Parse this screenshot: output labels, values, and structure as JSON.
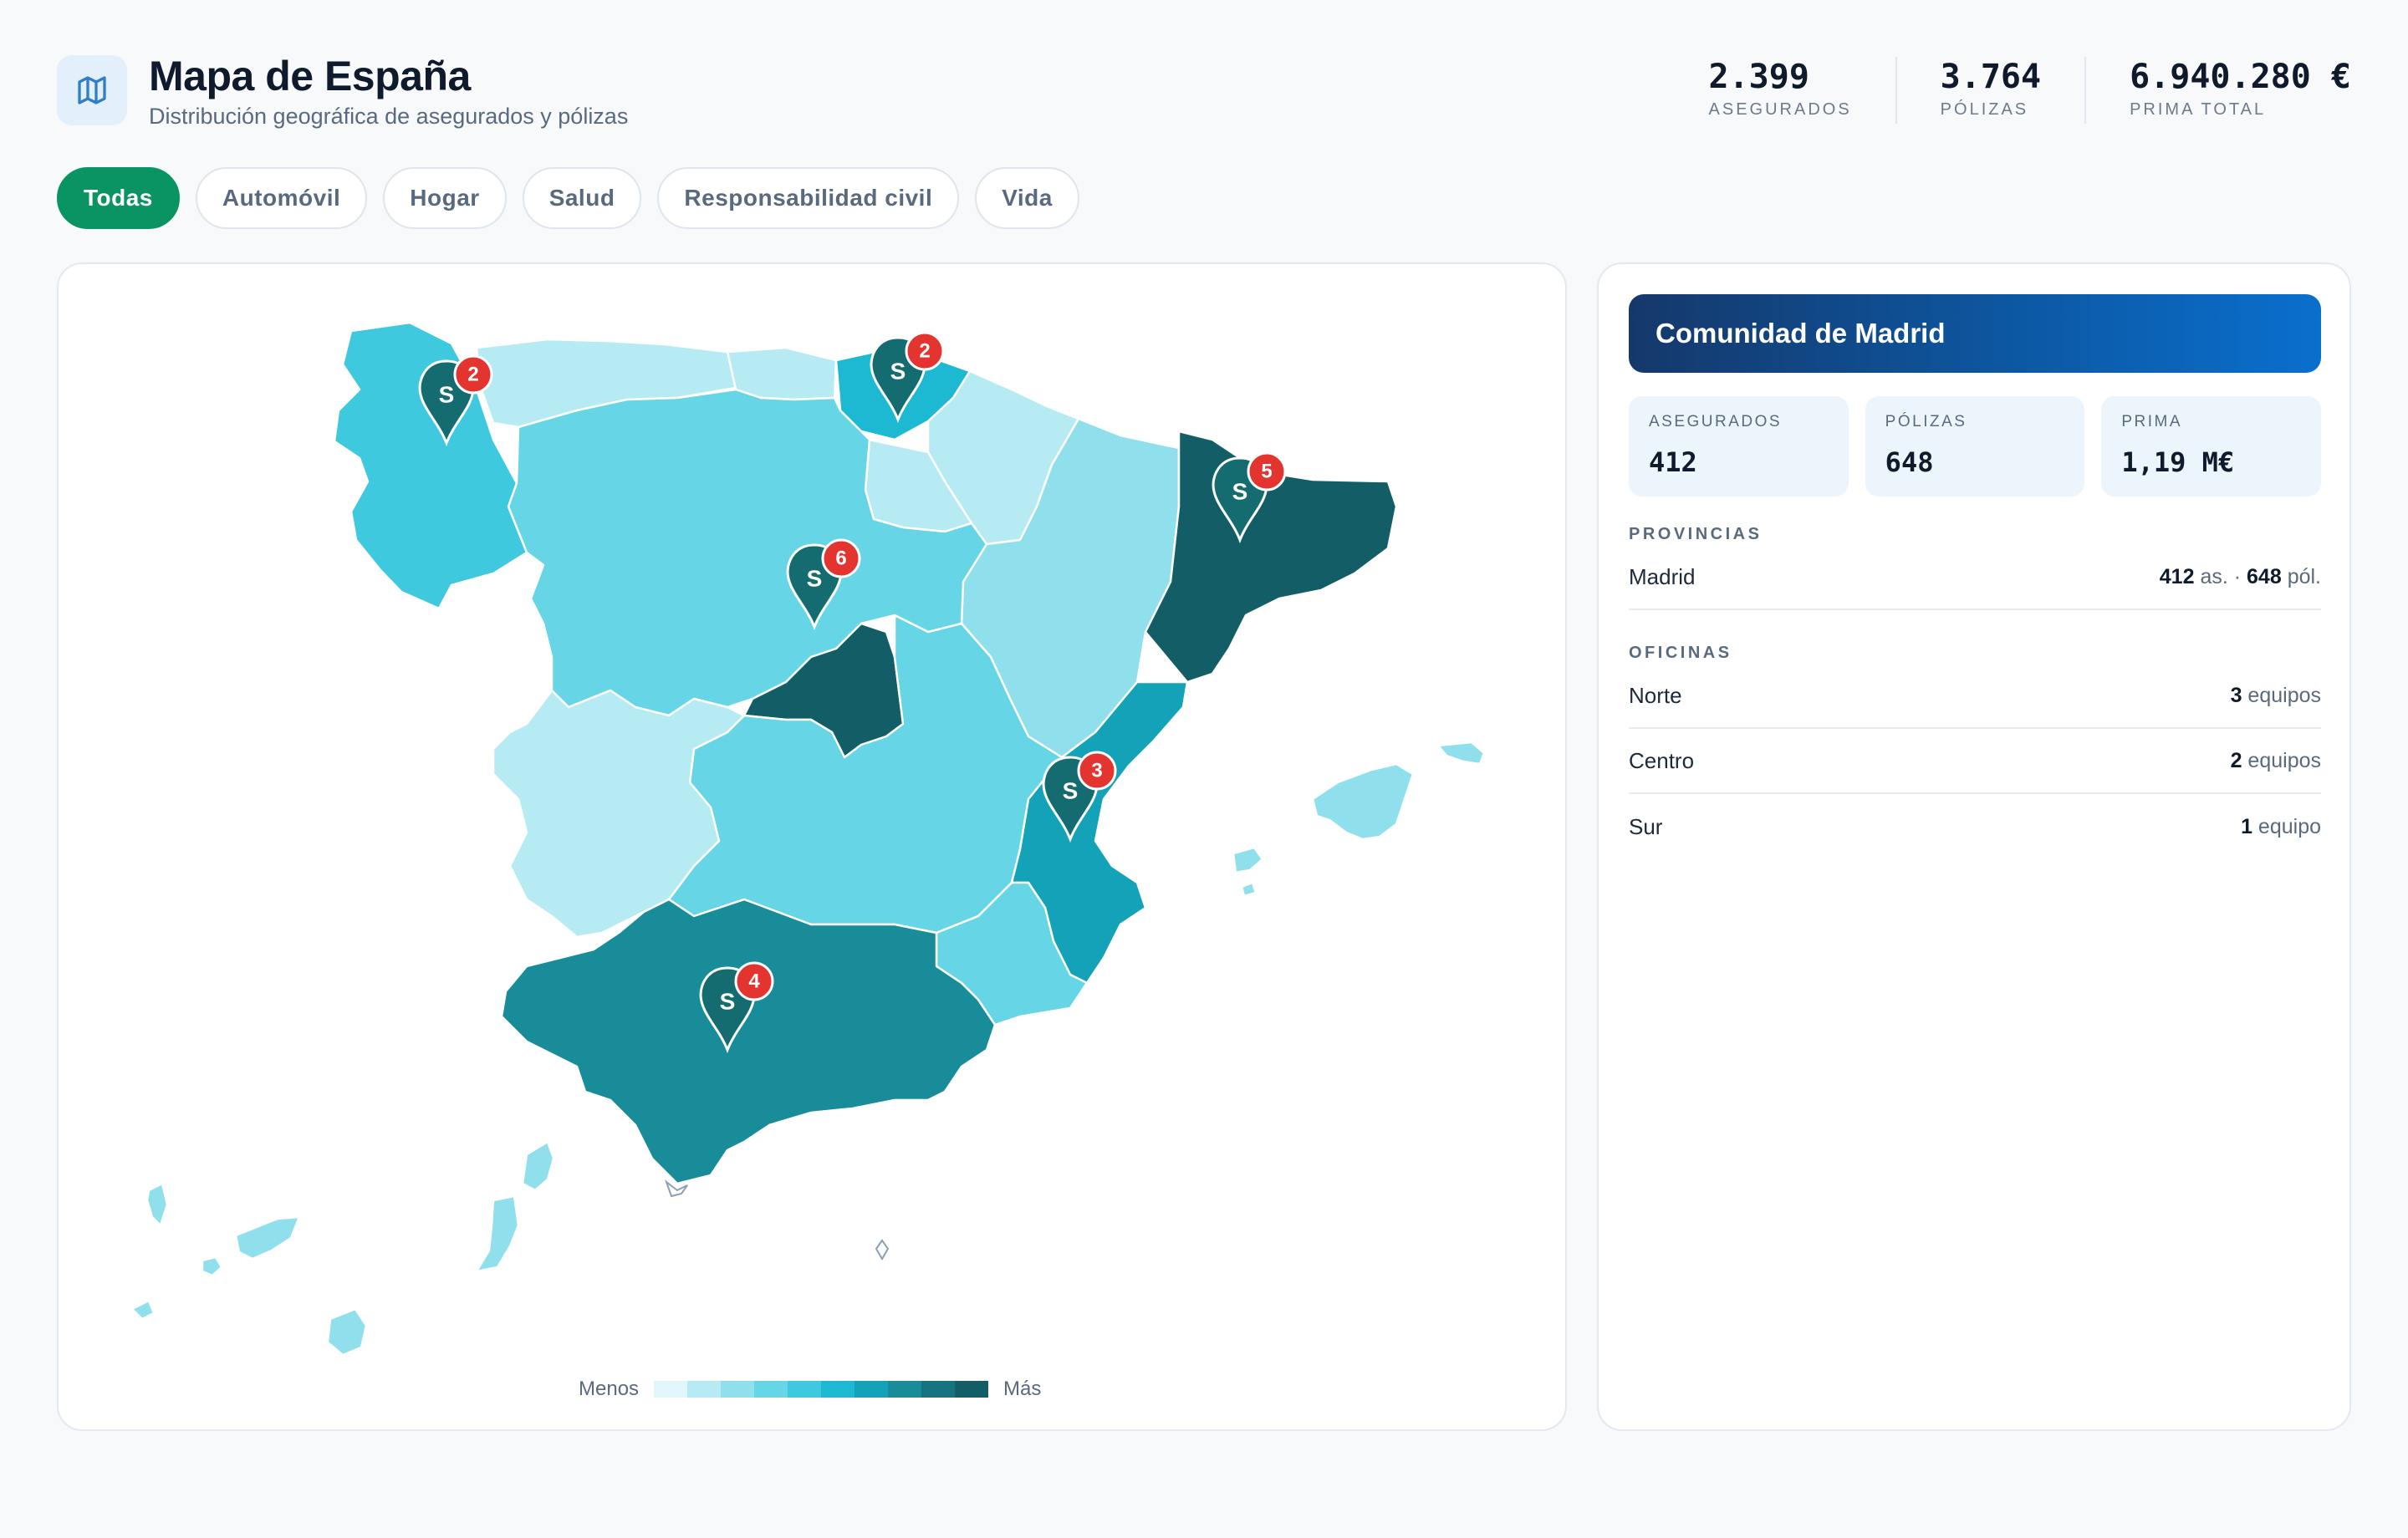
{
  "header": {
    "title": "Mapa de España",
    "subtitle": "Distribución geográfica de asegurados y pólizas",
    "icon": "map-icon"
  },
  "kpis": [
    {
      "value": "2.399",
      "label": "ASEGURADOS"
    },
    {
      "value": "3.764",
      "label": "PÓLIZAS"
    },
    {
      "value": "6.940.280 €",
      "label": "PRIMA TOTAL"
    }
  ],
  "filters": [
    {
      "label": "Todas",
      "active": true
    },
    {
      "label": "Automóvil",
      "active": false
    },
    {
      "label": "Hogar",
      "active": false
    },
    {
      "label": "Salud",
      "active": false
    },
    {
      "label": "Responsabilidad civil",
      "active": false
    },
    {
      "label": "Vida",
      "active": false
    }
  ],
  "map": {
    "legend": {
      "min": "Menos",
      "max": "Más"
    },
    "scale_colors": [
      "#e0f6fa",
      "#b7ebf3",
      "#8fe0ec",
      "#66d5e5",
      "#3fc9de",
      "#1db9d3",
      "#13a2b8",
      "#188c98",
      "#167481",
      "#125d66"
    ],
    "regions": [
      {
        "name": "Galicia",
        "level": 5
      },
      {
        "name": "Asturias",
        "level": 2
      },
      {
        "name": "Cantabria",
        "level": 2
      },
      {
        "name": "País Vasco",
        "level": 6
      },
      {
        "name": "Navarra",
        "level": 2
      },
      {
        "name": "La Rioja",
        "level": 2
      },
      {
        "name": "Aragón",
        "level": 3
      },
      {
        "name": "Cataluña",
        "level": 10
      },
      {
        "name": "Castilla y León",
        "level": 4
      },
      {
        "name": "Comunidad de Madrid",
        "level": 10
      },
      {
        "name": "Castilla-La Mancha",
        "level": 4
      },
      {
        "name": "Extremadura",
        "level": 2
      },
      {
        "name": "Comunidad Valenciana",
        "level": 7
      },
      {
        "name": "Región de Murcia",
        "level": 4
      },
      {
        "name": "Andalucía",
        "level": 8
      },
      {
        "name": "Islas Baleares",
        "level": 3
      },
      {
        "name": "Canarias",
        "level": 3
      }
    ],
    "pins": [
      {
        "label": "S",
        "count": "2"
      },
      {
        "label": "S",
        "count": "2"
      },
      {
        "label": "S",
        "count": "5"
      },
      {
        "label": "S",
        "count": "6"
      },
      {
        "label": "S",
        "count": "3"
      },
      {
        "label": "S",
        "count": "4"
      }
    ]
  },
  "panel": {
    "title": "Comunidad de Madrid",
    "stats": [
      {
        "label": "ASEGURADOS",
        "value": "412"
      },
      {
        "label": "PÓLIZAS",
        "value": "648"
      },
      {
        "label": "PRIMA",
        "value": "1,19 M€"
      }
    ],
    "provincias_label": "PROVINCIAS",
    "provincias": [
      {
        "name": "Madrid",
        "asegurados": "412",
        "as_unit": "as. ·",
        "polizas": "648",
        "pol_unit": "pól."
      }
    ],
    "oficinas_label": "OFICINAS",
    "oficinas": [
      {
        "name": "Norte",
        "count": "3",
        "unit": "equipos"
      },
      {
        "name": "Centro",
        "count": "2",
        "unit": "equipos"
      },
      {
        "name": "Sur",
        "count": "1",
        "unit": "equipo"
      }
    ]
  }
}
